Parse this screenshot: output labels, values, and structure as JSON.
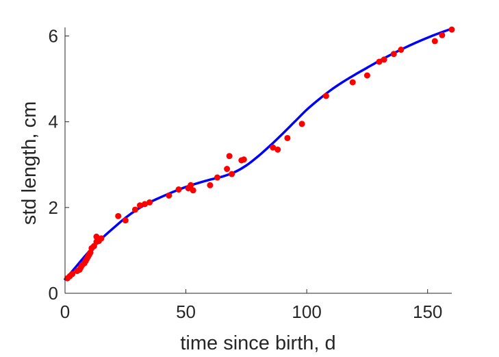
{
  "chart_data": {
    "type": "scatter",
    "xlabel": "time since birth, d",
    "ylabel": "std length, cm",
    "xlim": [
      0,
      160
    ],
    "ylim": [
      0,
      6.2
    ],
    "xticks": [
      0,
      50,
      100,
      150
    ],
    "yticks": [
      0,
      2,
      4,
      6
    ],
    "grid": false,
    "legend": "none",
    "colors": {
      "points": "#ff0000",
      "fit": "#0000ff",
      "axes": "#262626"
    },
    "series": [
      {
        "type": "scatter",
        "x": [
          1,
          2,
          3,
          5,
          6,
          6.5,
          7,
          8,
          8.5,
          9,
          9.5,
          10,
          10.5,
          11,
          12,
          13,
          13,
          14,
          15,
          22,
          25,
          29,
          31,
          33,
          35,
          43,
          47,
          51,
          52,
          53,
          60,
          63,
          67,
          68,
          69,
          73,
          74,
          86,
          88,
          92,
          98,
          108,
          119,
          125,
          130,
          132,
          136,
          139,
          153,
          156,
          160
        ],
        "y": [
          0.35,
          0.4,
          0.45,
          0.52,
          0.55,
          0.6,
          0.65,
          0.7,
          0.75,
          0.8,
          0.85,
          0.9,
          0.95,
          1.05,
          1.1,
          1.2,
          1.32,
          1.22,
          1.28,
          1.8,
          1.7,
          1.95,
          2.05,
          2.08,
          2.12,
          2.28,
          2.42,
          2.45,
          2.52,
          2.4,
          2.52,
          2.7,
          2.9,
          3.2,
          2.78,
          3.1,
          3.12,
          3.4,
          3.35,
          3.62,
          3.95,
          4.6,
          4.92,
          5.08,
          5.4,
          5.45,
          5.58,
          5.68,
          5.88,
          6.02,
          6.15
        ]
      },
      {
        "type": "line",
        "x": [
          0,
          2,
          5,
          8,
          12,
          16,
          20,
          25,
          30,
          35,
          40,
          45,
          50,
          55,
          60,
          65,
          70,
          75,
          80,
          85,
          90,
          95,
          100,
          105,
          110,
          115,
          120,
          125,
          130,
          135,
          140,
          145,
          150,
          155,
          160
        ],
        "y": [
          0.33,
          0.45,
          0.65,
          0.85,
          1.1,
          1.32,
          1.52,
          1.76,
          1.96,
          2.12,
          2.25,
          2.37,
          2.48,
          2.57,
          2.65,
          2.72,
          2.82,
          2.98,
          3.2,
          3.45,
          3.72,
          4.0,
          4.28,
          4.52,
          4.74,
          4.93,
          5.1,
          5.26,
          5.42,
          5.57,
          5.71,
          5.84,
          5.96,
          6.07,
          6.17
        ]
      }
    ]
  }
}
